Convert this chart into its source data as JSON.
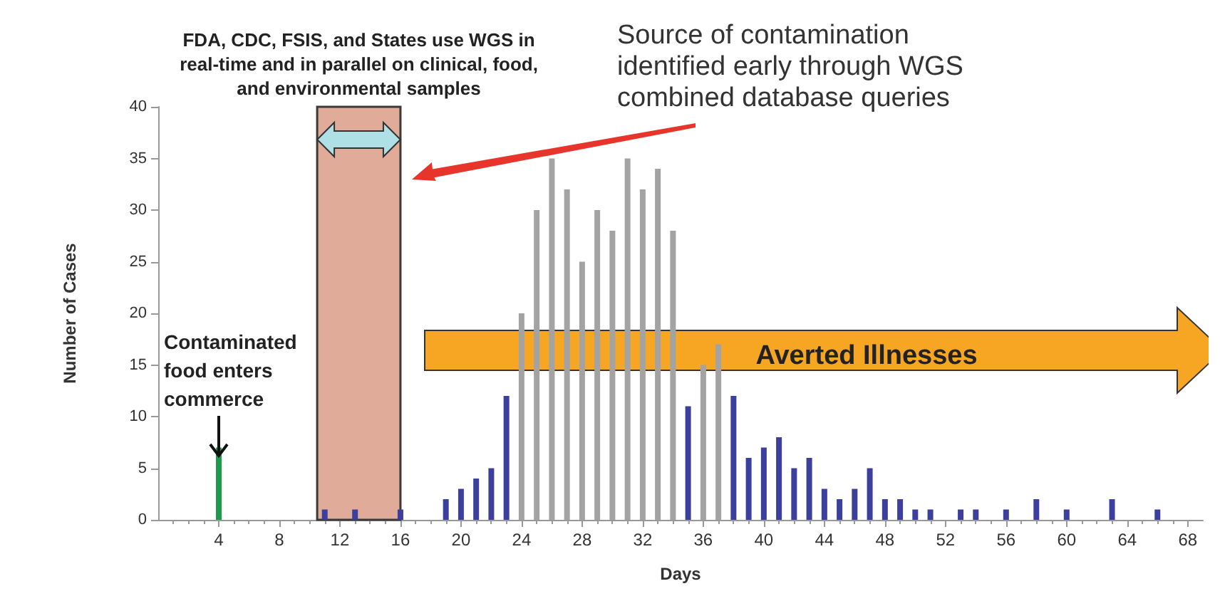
{
  "chart_data": {
    "type": "bar",
    "xlabel": "Days",
    "ylabel": "Number of Cases",
    "x": [
      4,
      11,
      13,
      16,
      19,
      20,
      21,
      22,
      23,
      24,
      25,
      26,
      27,
      28,
      29,
      30,
      31,
      32,
      33,
      34,
      35,
      36,
      37,
      38,
      39,
      40,
      41,
      42,
      43,
      44,
      45,
      46,
      47,
      48,
      49,
      50,
      51,
      53,
      54,
      56,
      58,
      60,
      63,
      66
    ],
    "values": [
      7,
      1,
      1,
      1,
      2,
      3,
      4,
      5,
      12,
      20,
      30,
      35,
      32,
      25,
      30,
      28,
      35,
      32,
      34,
      28,
      11,
      15,
      17,
      12,
      6,
      7,
      8,
      5,
      6,
      3,
      2,
      3,
      5,
      2,
      2,
      1,
      1,
      1,
      1,
      1,
      2,
      1,
      2,
      1
    ],
    "colors": [
      "#1f9a4c",
      "#3c3f9c",
      "#3c3f9c",
      "#3c3f9c",
      "#3c3f9c",
      "#3c3f9c",
      "#3c3f9c",
      "#3c3f9c",
      "#3c3f9c",
      "#a3a3a3",
      "#a3a3a3",
      "#a3a3a3",
      "#a3a3a3",
      "#a3a3a3",
      "#a3a3a3",
      "#a3a3a3",
      "#a3a3a3",
      "#a3a3a3",
      "#a3a3a3",
      "#a3a3a3",
      "#3c3f9c",
      "#a3a3a3",
      "#a3a3a3",
      "#3c3f9c",
      "#3c3f9c",
      "#3c3f9c",
      "#3c3f9c",
      "#3c3f9c",
      "#3c3f9c",
      "#3c3f9c",
      "#3c3f9c",
      "#3c3f9c",
      "#3c3f9c",
      "#3c3f9c",
      "#3c3f9c",
      "#3c3f9c",
      "#3c3f9c",
      "#3c3f9c",
      "#3c3f9c",
      "#3c3f9c",
      "#3c3f9c",
      "#3c3f9c",
      "#3c3f9c",
      "#3c3f9c"
    ],
    "xlim": [
      0,
      69
    ],
    "xticks": [
      4,
      8,
      12,
      16,
      20,
      24,
      28,
      32,
      36,
      40,
      44,
      48,
      52,
      56,
      60,
      64,
      68
    ],
    "ylim": [
      0,
      40
    ],
    "yticks": [
      0,
      5,
      10,
      15,
      20,
      25,
      30,
      35,
      40
    ],
    "grid": false,
    "bands": [
      {
        "axis": "x",
        "from": 10.5,
        "to": 16,
        "label": "FDA, CDC, FSIS, and States use WGS in\nreal-time and in parallel on clinical, food,\nand environmental samples",
        "color": "#e0ab98"
      }
    ],
    "annotations": [
      "Contaminated\nfood enters\ncommerce",
      "Source of contamination\nidentified early through WGS\ncombined database queries",
      "Averted Illnesses"
    ]
  }
}
